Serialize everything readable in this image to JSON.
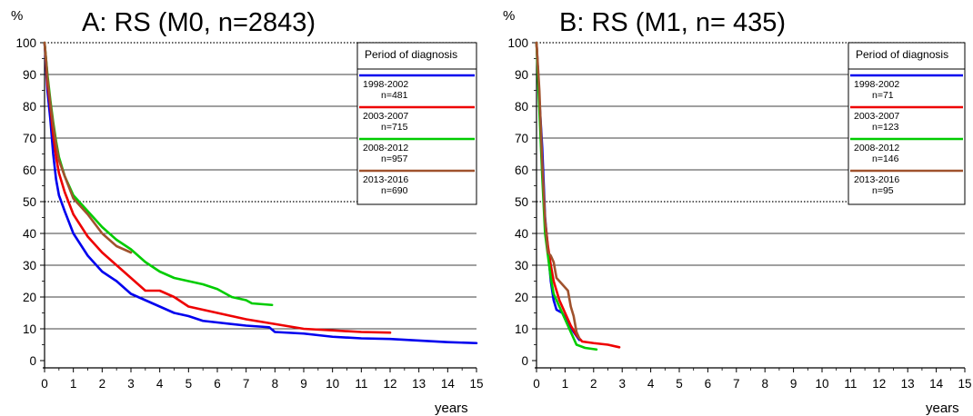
{
  "chart_data": [
    {
      "type": "line",
      "title": "A: RS (M0, n=2843)",
      "ylabel": "%",
      "xlabel": "years",
      "xlim": [
        0,
        15
      ],
      "ylim": [
        0,
        100
      ],
      "xticks": [
        0,
        1,
        2,
        3,
        4,
        5,
        6,
        7,
        8,
        9,
        10,
        11,
        12,
        13,
        14,
        15
      ],
      "yticks": [
        0,
        10,
        20,
        30,
        40,
        50,
        60,
        70,
        80,
        90,
        100
      ],
      "grid": "horizontal",
      "legend_position": "top-right",
      "legend_title": "Period of diagnosis",
      "series": [
        {
          "name": "1998-2002",
          "n_label": "n=481",
          "color": "#0000ee",
          "points": [
            [
              0,
              100
            ],
            [
              0.05,
              93
            ],
            [
              0.1,
              85
            ],
            [
              0.2,
              76
            ],
            [
              0.3,
              65
            ],
            [
              0.4,
              57
            ],
            [
              0.5,
              52
            ],
            [
              0.7,
              47
            ],
            [
              1,
              40
            ],
            [
              1.5,
              33
            ],
            [
              2,
              28
            ],
            [
              2.5,
              25
            ],
            [
              3,
              21
            ],
            [
              3.5,
              19
            ],
            [
              4,
              17
            ],
            [
              4.5,
              15
            ],
            [
              5,
              14
            ],
            [
              5.5,
              12.5
            ],
            [
              6,
              12
            ],
            [
              7,
              11
            ],
            [
              7.8,
              10.5
            ],
            [
              8,
              9
            ],
            [
              9,
              8.5
            ],
            [
              10,
              7.5
            ],
            [
              11,
              7
            ],
            [
              12,
              6.8
            ],
            [
              13,
              6.3
            ],
            [
              14,
              5.8
            ],
            [
              15,
              5.5
            ]
          ]
        },
        {
          "name": "2003-2007",
          "n_label": "n=715",
          "color": "#ee0000",
          "points": [
            [
              0,
              100
            ],
            [
              0.05,
              94
            ],
            [
              0.1,
              87
            ],
            [
              0.2,
              80
            ],
            [
              0.3,
              71
            ],
            [
              0.4,
              64
            ],
            [
              0.5,
              59
            ],
            [
              0.7,
              53
            ],
            [
              1,
              46
            ],
            [
              1.5,
              39
            ],
            [
              2,
              34
            ],
            [
              2.5,
              30
            ],
            [
              3,
              26
            ],
            [
              3.5,
              22
            ],
            [
              4,
              22
            ],
            [
              4.5,
              20
            ],
            [
              5,
              17
            ],
            [
              5.5,
              16
            ],
            [
              6,
              15
            ],
            [
              7,
              13
            ],
            [
              8,
              11.5
            ],
            [
              9,
              10
            ],
            [
              10,
              9.5
            ],
            [
              11,
              9
            ],
            [
              12,
              8.8
            ]
          ]
        },
        {
          "name": "2008-2012",
          "n_label": "n=957",
          "color": "#00cc00",
          "points": [
            [
              0,
              100
            ],
            [
              0.05,
              95
            ],
            [
              0.1,
              90
            ],
            [
              0.2,
              82
            ],
            [
              0.3,
              75
            ],
            [
              0.4,
              69
            ],
            [
              0.5,
              64
            ],
            [
              0.7,
              58
            ],
            [
              1,
              52
            ],
            [
              1.5,
              47
            ],
            [
              2,
              42
            ],
            [
              2.5,
              38
            ],
            [
              3,
              35
            ],
            [
              3.5,
              31
            ],
            [
              4,
              28
            ],
            [
              4.5,
              26
            ],
            [
              5,
              25
            ],
            [
              5.5,
              24
            ],
            [
              6,
              22.5
            ],
            [
              6.5,
              20
            ],
            [
              7,
              19
            ],
            [
              7.2,
              18
            ],
            [
              7.9,
              17.5
            ]
          ]
        },
        {
          "name": "2013-2016",
          "n_label": "n=690",
          "color": "#a0522d",
          "points": [
            [
              0,
              100
            ],
            [
              0.05,
              95
            ],
            [
              0.1,
              89
            ],
            [
              0.2,
              81
            ],
            [
              0.3,
              74
            ],
            [
              0.4,
              68
            ],
            [
              0.5,
              63
            ],
            [
              0.7,
              58
            ],
            [
              1,
              51
            ],
            [
              1.5,
              46
            ],
            [
              2,
              40
            ],
            [
              2.5,
              36
            ],
            [
              3,
              34
            ]
          ]
        }
      ]
    },
    {
      "type": "line",
      "title": "B: RS (M1, n= 435)",
      "ylabel": "%",
      "xlabel": "years",
      "xlim": [
        0,
        15
      ],
      "ylim": [
        0,
        100
      ],
      "xticks": [
        0,
        1,
        2,
        3,
        4,
        5,
        6,
        7,
        8,
        9,
        10,
        11,
        12,
        13,
        14,
        15
      ],
      "yticks": [
        0,
        10,
        20,
        30,
        40,
        50,
        60,
        70,
        80,
        90,
        100
      ],
      "grid": "horizontal",
      "legend_position": "top-right",
      "legend_title": "Period of diagnosis",
      "series": [
        {
          "name": "1998-2002",
          "n_label": "n=71",
          "color": "#0000ee",
          "points": [
            [
              0,
              100
            ],
            [
              0.1,
              82
            ],
            [
              0.2,
              67
            ],
            [
              0.3,
              45
            ],
            [
              0.4,
              35
            ],
            [
              0.5,
              25
            ],
            [
              0.6,
              19
            ],
            [
              0.7,
              16
            ],
            [
              0.9,
              15
            ],
            [
              1.1,
              12
            ],
            [
              1.3,
              9
            ],
            [
              1.5,
              6.5
            ]
          ]
        },
        {
          "name": "2003-2007",
          "n_label": "n=123",
          "color": "#ee0000",
          "points": [
            [
              0,
              100
            ],
            [
              0.1,
              82
            ],
            [
              0.2,
              60
            ],
            [
              0.3,
              44
            ],
            [
              0.4,
              36
            ],
            [
              0.5,
              30
            ],
            [
              0.6,
              25
            ],
            [
              0.8,
              19
            ],
            [
              1,
              15
            ],
            [
              1.2,
              11
            ],
            [
              1.4,
              8
            ],
            [
              1.6,
              6
            ],
            [
              2,
              5.5
            ],
            [
              2.5,
              5
            ],
            [
              2.9,
              4.2
            ]
          ]
        },
        {
          "name": "2008-2012",
          "n_label": "n=146",
          "color": "#00cc00",
          "points": [
            [
              0,
              100
            ],
            [
              0.1,
              79
            ],
            [
              0.2,
              58
            ],
            [
              0.3,
              40
            ],
            [
              0.4,
              33
            ],
            [
              0.5,
              26
            ],
            [
              0.6,
              21
            ],
            [
              0.8,
              17
            ],
            [
              1,
              13
            ],
            [
              1.2,
              9
            ],
            [
              1.4,
              5
            ],
            [
              1.7,
              4
            ],
            [
              2.1,
              3.5
            ]
          ]
        },
        {
          "name": "2013-2016",
          "n_label": "n=95",
          "color": "#a0522d",
          "points": [
            [
              0,
              100
            ],
            [
              0.1,
              85
            ],
            [
              0.2,
              62
            ],
            [
              0.3,
              44
            ],
            [
              0.4,
              34
            ],
            [
              0.5,
              33
            ],
            [
              0.6,
              31
            ],
            [
              0.7,
              26
            ],
            [
              0.9,
              24
            ],
            [
              1.1,
              22
            ],
            [
              1.2,
              17
            ],
            [
              1.3,
              14
            ],
            [
              1.4,
              9
            ],
            [
              1.5,
              7
            ]
          ]
        }
      ]
    }
  ]
}
